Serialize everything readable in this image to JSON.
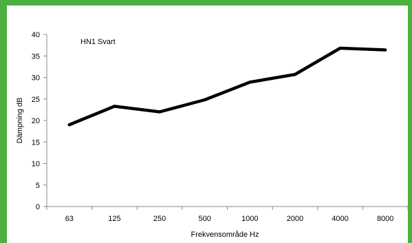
{
  "frame_color": "#4caf3f",
  "chart_data": {
    "type": "line",
    "categories": [
      "63",
      "125",
      "250",
      "500",
      "1000",
      "2000",
      "4000",
      "8000"
    ],
    "series": [
      {
        "name": "HN1 Svart",
        "values": [
          19,
          23.3,
          22,
          24.8,
          28.9,
          30.7,
          36.8,
          36.4
        ]
      }
    ],
    "xlabel": "Frekvensområde Hz",
    "ylabel": "Dämpning dB",
    "ylim": [
      0,
      40
    ],
    "yticks": [
      0,
      5,
      10,
      15,
      20,
      25,
      30,
      35,
      40
    ],
    "grid": false,
    "line_color": "#000000"
  }
}
